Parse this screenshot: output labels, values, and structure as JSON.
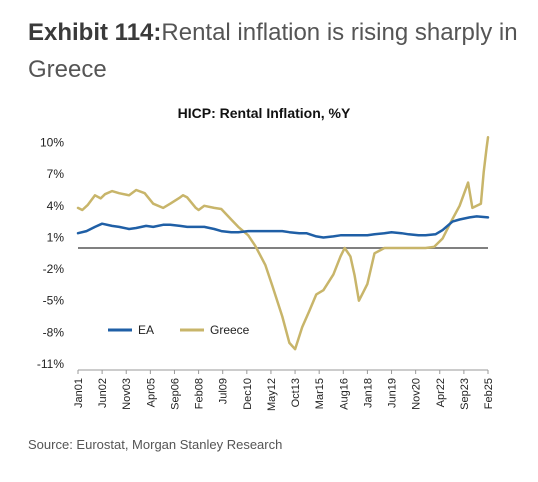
{
  "exhibit": {
    "label": "Exhibit 114:",
    "title": "Rental inflation is rising sharply in Greece"
  },
  "source": "Source: Eurostat, Morgan Stanley Research",
  "colors": {
    "EA": "#1f5fa6",
    "Greece": "#c8b56a",
    "zero_line": "#808080"
  },
  "chart_data": {
    "type": "line",
    "title": "HICP: Rental Inflation, %Y",
    "xlabel": "",
    "ylabel": "",
    "ylim": [
      -11,
      11
    ],
    "yticks": [
      "10%",
      "7%",
      "4%",
      "1%",
      "-2%",
      "-5%",
      "-8%",
      "-11%"
    ],
    "ytick_values": [
      10,
      7,
      4,
      1,
      -2,
      -5,
      -8,
      -11
    ],
    "xticks": [
      "Jan01",
      "Jun02",
      "Nov03",
      "Apr05",
      "Sep06",
      "Feb08",
      "Jul09",
      "Dec10",
      "May12",
      "Oct13",
      "Mar15",
      "Aug16",
      "Jan18",
      "Jun19",
      "Nov20",
      "Apr22",
      "Sep23",
      "Feb25"
    ],
    "xrange": [
      "2001-01",
      "2025-02"
    ],
    "grid": false,
    "legend": "bottom-left",
    "series": [
      {
        "name": "EA",
        "points": [
          [
            "2001-01",
            1.4
          ],
          [
            "2001-07",
            1.6
          ],
          [
            "2002-01",
            2.0
          ],
          [
            "2002-06",
            2.3
          ],
          [
            "2003-01",
            2.1
          ],
          [
            "2003-06",
            2.0
          ],
          [
            "2004-01",
            1.8
          ],
          [
            "2004-06",
            1.9
          ],
          [
            "2005-01",
            2.1
          ],
          [
            "2005-06",
            2.0
          ],
          [
            "2006-01",
            2.2
          ],
          [
            "2006-06",
            2.2
          ],
          [
            "2007-01",
            2.1
          ],
          [
            "2007-06",
            2.0
          ],
          [
            "2008-01",
            2.0
          ],
          [
            "2008-06",
            2.0
          ],
          [
            "2009-01",
            1.8
          ],
          [
            "2009-06",
            1.6
          ],
          [
            "2010-01",
            1.5
          ],
          [
            "2010-06",
            1.5
          ],
          [
            "2011-01",
            1.6
          ],
          [
            "2011-06",
            1.6
          ],
          [
            "2012-01",
            1.6
          ],
          [
            "2012-06",
            1.6
          ],
          [
            "2013-01",
            1.6
          ],
          [
            "2013-06",
            1.5
          ],
          [
            "2014-01",
            1.4
          ],
          [
            "2014-06",
            1.4
          ],
          [
            "2015-01",
            1.1
          ],
          [
            "2015-06",
            1.0
          ],
          [
            "2016-01",
            1.1
          ],
          [
            "2016-06",
            1.2
          ],
          [
            "2017-01",
            1.2
          ],
          [
            "2017-06",
            1.2
          ],
          [
            "2018-01",
            1.2
          ],
          [
            "2018-06",
            1.3
          ],
          [
            "2019-01",
            1.4
          ],
          [
            "2019-06",
            1.5
          ],
          [
            "2020-01",
            1.4
          ],
          [
            "2020-06",
            1.3
          ],
          [
            "2021-01",
            1.2
          ],
          [
            "2021-06",
            1.2
          ],
          [
            "2022-01",
            1.3
          ],
          [
            "2022-06",
            1.7
          ],
          [
            "2023-01",
            2.5
          ],
          [
            "2023-06",
            2.7
          ],
          [
            "2024-01",
            2.9
          ],
          [
            "2024-06",
            3.0
          ],
          [
            "2025-02",
            2.9
          ]
        ]
      },
      {
        "name": "Greece",
        "points": [
          [
            "2001-01",
            3.8
          ],
          [
            "2001-04",
            3.6
          ],
          [
            "2001-08",
            4.1
          ],
          [
            "2002-01",
            5.0
          ],
          [
            "2002-05",
            4.7
          ],
          [
            "2002-08",
            5.1
          ],
          [
            "2003-01",
            5.4
          ],
          [
            "2003-06",
            5.2
          ],
          [
            "2004-01",
            5.0
          ],
          [
            "2004-06",
            5.5
          ],
          [
            "2004-12",
            5.2
          ],
          [
            "2005-06",
            4.2
          ],
          [
            "2006-01",
            3.8
          ],
          [
            "2006-06",
            4.2
          ],
          [
            "2007-01",
            4.8
          ],
          [
            "2007-03",
            5.0
          ],
          [
            "2007-06",
            4.8
          ],
          [
            "2007-12",
            3.8
          ],
          [
            "2008-02",
            3.6
          ],
          [
            "2008-06",
            4.0
          ],
          [
            "2009-01",
            3.8
          ],
          [
            "2009-06",
            3.7
          ],
          [
            "2010-01",
            2.7
          ],
          [
            "2010-06",
            2.0
          ],
          [
            "2011-01",
            1.2
          ],
          [
            "2011-06",
            0.2
          ],
          [
            "2012-01",
            -1.6
          ],
          [
            "2012-06",
            -3.6
          ],
          [
            "2013-01",
            -6.5
          ],
          [
            "2013-06",
            -9.0
          ],
          [
            "2013-10",
            -9.6
          ],
          [
            "2014-03",
            -7.5
          ],
          [
            "2014-08",
            -6.0
          ],
          [
            "2015-01",
            -4.4
          ],
          [
            "2015-06",
            -4.0
          ],
          [
            "2016-01",
            -2.5
          ],
          [
            "2016-06",
            -0.8
          ],
          [
            "2016-09",
            0.0
          ],
          [
            "2017-01",
            -0.8
          ],
          [
            "2017-04",
            -2.6
          ],
          [
            "2017-07",
            -5.0
          ],
          [
            "2017-10",
            -4.2
          ],
          [
            "2018-01",
            -3.4
          ],
          [
            "2018-06",
            -0.5
          ],
          [
            "2019-01",
            0.0
          ],
          [
            "2019-06",
            0.0
          ],
          [
            "2020-01",
            0.0
          ],
          [
            "2020-06",
            0.0
          ],
          [
            "2021-01",
            0.0
          ],
          [
            "2021-06",
            0.0
          ],
          [
            "2021-12",
            0.1
          ],
          [
            "2022-06",
            0.9
          ],
          [
            "2022-12",
            2.5
          ],
          [
            "2023-06",
            4.0
          ],
          [
            "2023-12",
            6.2
          ],
          [
            "2024-03",
            3.8
          ],
          [
            "2024-06",
            4.0
          ],
          [
            "2024-09",
            4.2
          ],
          [
            "2024-11",
            7.2
          ],
          [
            "2025-01",
            9.5
          ],
          [
            "2025-02",
            10.5
          ]
        ]
      }
    ]
  }
}
